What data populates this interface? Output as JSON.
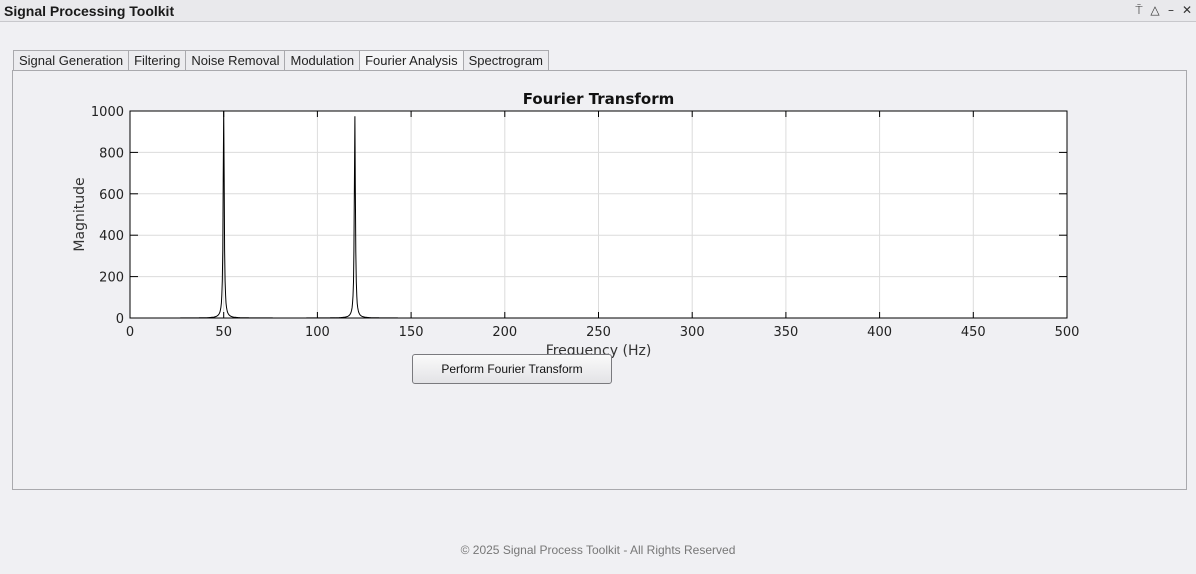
{
  "window": {
    "title": "Signal Processing Toolkit",
    "controls": {
      "pin": "⍑",
      "collapse": "△",
      "minimize": "–",
      "close": "✕"
    }
  },
  "tabs": [
    {
      "label": "Signal Generation",
      "active": false
    },
    {
      "label": "Filtering",
      "active": false
    },
    {
      "label": "Noise Removal",
      "active": false
    },
    {
      "label": "Modulation",
      "active": false
    },
    {
      "label": "Fourier Analysis",
      "active": true
    },
    {
      "label": "Spectrogram",
      "active": false
    }
  ],
  "chart_data": {
    "type": "line",
    "title": "Fourier Transform",
    "xlabel": "Frequency (Hz)",
    "ylabel": "Magnitude",
    "xlim": [
      0,
      500
    ],
    "ylim": [
      0,
      1000
    ],
    "xticks": [
      0,
      50,
      100,
      150,
      200,
      250,
      300,
      350,
      400,
      450,
      500
    ],
    "yticks": [
      0,
      200,
      400,
      600,
      800,
      1000
    ],
    "grid": true,
    "series": [
      {
        "color": "#000000",
        "peaks": [
          {
            "x": 50,
            "y": 1000
          },
          {
            "x": 120,
            "y": 975
          }
        ]
      }
    ]
  },
  "actions": {
    "fft_button_label": "Perform Fourier Transform"
  },
  "footer": {
    "text": "© 2025 Signal Process Toolkit - All Rights Reserved"
  }
}
